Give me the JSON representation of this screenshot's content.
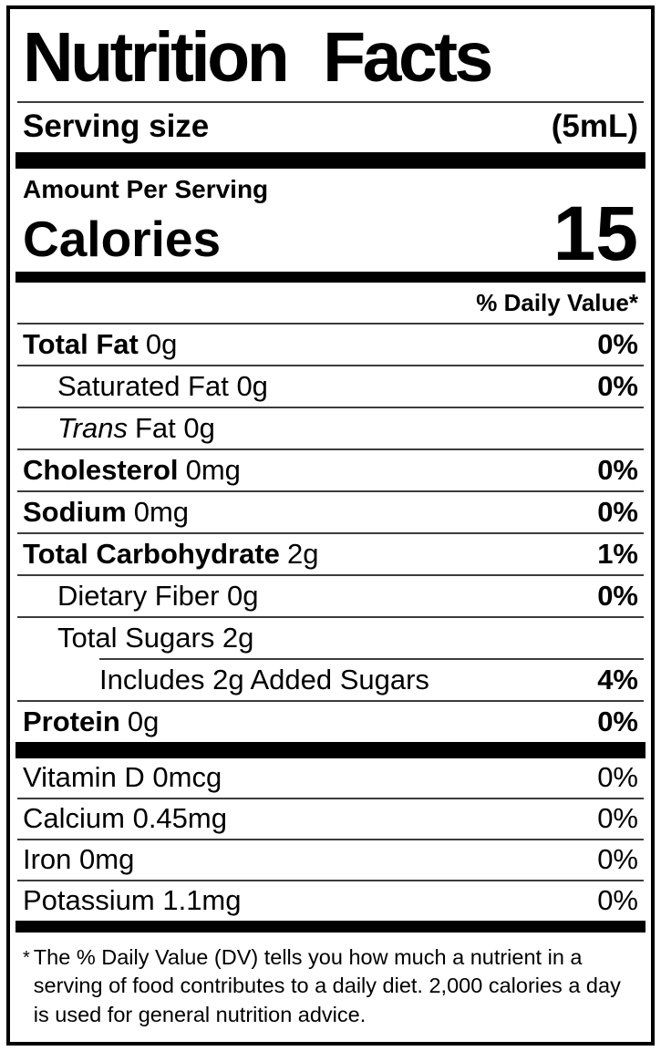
{
  "label": {
    "colors": {
      "text": "#000000",
      "background": "#ffffff",
      "bars": "#000000"
    },
    "title": "Nutrition Facts",
    "serving_size": {
      "label": "Serving size",
      "value": "(5mL)"
    },
    "amount_per_serving": "Amount Per Serving",
    "calories": {
      "label": "Calories",
      "value": "15"
    },
    "daily_value_header": "% Daily Value*",
    "nutrients": [
      {
        "bold": "Total Fat",
        "regular": "0g",
        "dv": "0%",
        "indent": 0,
        "divider": "full"
      },
      {
        "regular": "Saturated Fat 0g",
        "dv": "0%",
        "indent": 1,
        "divider": "full"
      },
      {
        "italic": "Trans",
        "regular": "Fat 0g",
        "indent": 1,
        "divider": "full"
      },
      {
        "bold": "Cholesterol",
        "regular": "0mg",
        "dv": "0%",
        "indent": 0,
        "divider": "full"
      },
      {
        "bold": "Sodium",
        "regular": "0mg",
        "dv": "0%",
        "indent": 0,
        "divider": "full"
      },
      {
        "bold": "Total Carbohydrate",
        "regular": "2g",
        "dv": "1%",
        "indent": 0,
        "divider": "full"
      },
      {
        "regular": "Dietary Fiber 0g",
        "dv": "0%",
        "indent": 1,
        "divider": "full"
      },
      {
        "regular": "Total Sugars 2g",
        "indent": 1,
        "divider": "full"
      },
      {
        "regular": "Includes 2g Added Sugars",
        "dv": "4%",
        "indent": 2,
        "divider": "inset"
      },
      {
        "bold": "Protein",
        "regular": "0g",
        "dv": "0%",
        "indent": 0,
        "divider": "full"
      }
    ],
    "micronutrients": [
      {
        "name": "Vitamin D 0mcg",
        "dv": "0%"
      },
      {
        "name": "Calcium 0.45mg",
        "dv": "0%"
      },
      {
        "name": "Iron 0mg",
        "dv": "0%"
      },
      {
        "name": "Potassium 1.1mg",
        "dv": "0%"
      }
    ],
    "footnote": {
      "marker": "*",
      "text": "The % Daily Value (DV) tells you how much a nutrient in a serving of food contributes to a daily diet. 2,000 calories a day is used for general nutrition advice."
    }
  }
}
